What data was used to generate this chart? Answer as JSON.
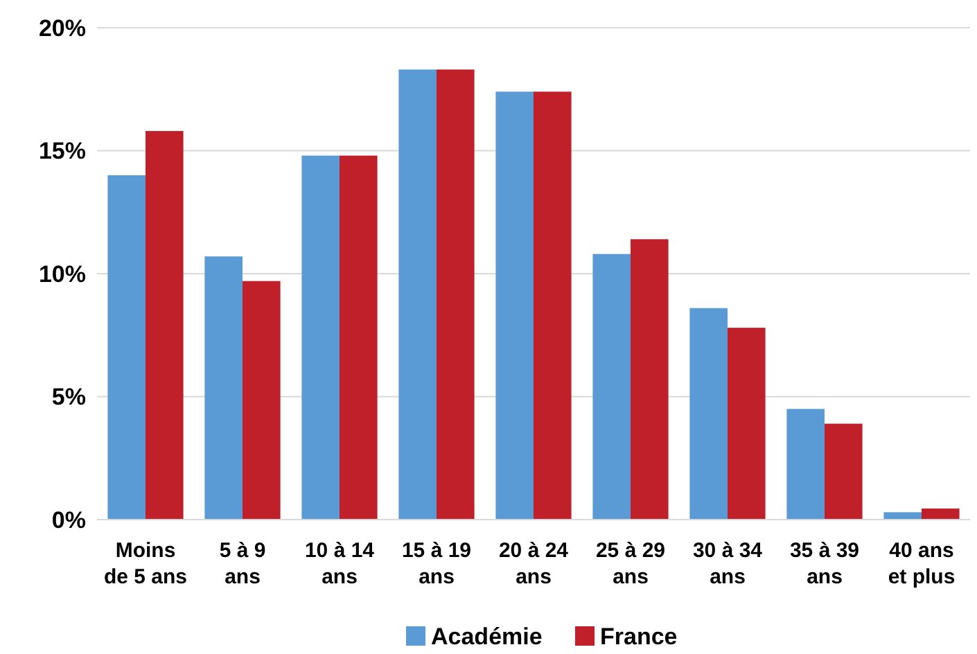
{
  "chart_data": {
    "type": "bar",
    "categories": [
      "Moins\nde 5 ans",
      "5 à 9\nans",
      "10 à 14\nans",
      "15 à 19\nans",
      "20 à 24\nans",
      "25 à 29\nans",
      "30 à 34\nans",
      "35 à 39\nans",
      "40 ans\net plus"
    ],
    "series": [
      {
        "name": "Académie",
        "color": "#5b9bd5",
        "values": [
          14.0,
          10.7,
          14.8,
          18.3,
          17.4,
          10.8,
          8.6,
          4.5,
          0.3
        ]
      },
      {
        "name": "France",
        "color": "#c0202a",
        "values": [
          15.8,
          9.7,
          14.8,
          18.3,
          17.4,
          11.4,
          7.8,
          3.9,
          0.45
        ]
      }
    ],
    "ylim": [
      0,
      20
    ],
    "yticks": [
      {
        "value": 0,
        "label": "0%"
      },
      {
        "value": 5,
        "label": "5%"
      },
      {
        "value": 10,
        "label": "10%"
      },
      {
        "value": 15,
        "label": "15%"
      },
      {
        "value": 20,
        "label": "20%"
      }
    ],
    "grid": "y",
    "legend": "bottom"
  }
}
